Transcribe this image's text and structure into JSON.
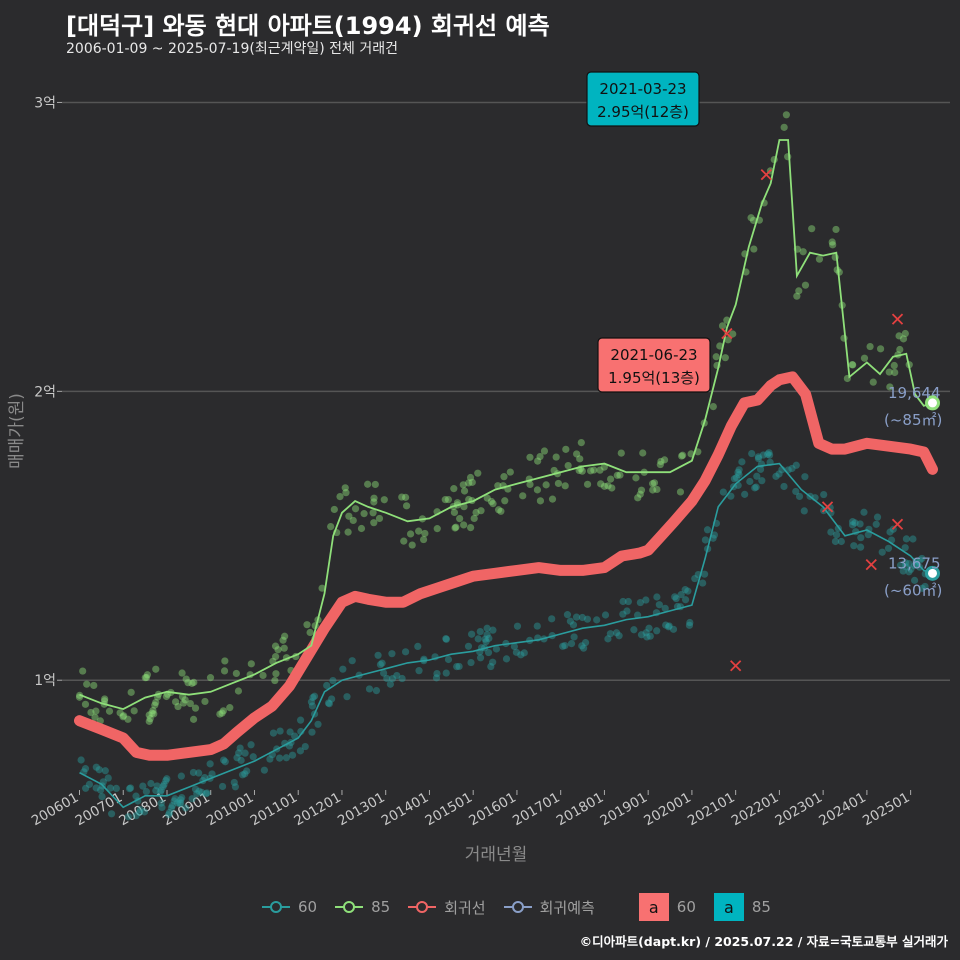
{
  "title": "[대덕구] 와동 현대 아파트(1994) 회귀선 예측",
  "subtitle": "2006-01-09 ~ 2025-07-19(최근계약일) 전체 거래건",
  "caption": "©디아파트(dapt.kr) / 2025.07.22 / 자료=국토교통부 실거래가",
  "colors": {
    "background": "#2b2b2d",
    "grid": "#555555",
    "series_60": "#2a9d9e",
    "series_85": "#8fe07a",
    "regression": "#f06565",
    "forecast": "#8a9fc8",
    "label_85_box": "#00b4c0",
    "label_reg_box": "#f87171"
  },
  "legend": {
    "items": [
      "60",
      "85",
      "회귀선",
      "회귀예측"
    ],
    "label_boxes": [
      {
        "text": "a",
        "label": "60"
      },
      {
        "text": "a",
        "label": "85"
      }
    ]
  },
  "chart_data": {
    "type": "scatter",
    "xlabel": "거래년월",
    "ylabel": "매매가(원)",
    "x_tick_labels": [
      "200601",
      "200701",
      "200801",
      "200901",
      "201001",
      "201101",
      "201201",
      "201301",
      "201401",
      "201501",
      "201601",
      "201701",
      "201801",
      "201901",
      "202001",
      "202101",
      "202201",
      "202301",
      "202401",
      "202501"
    ],
    "y_ticks": [
      1,
      2,
      3
    ],
    "y_tick_labels": [
      "1억",
      "2억",
      "3억"
    ],
    "ylim": [
      0.62,
      3.14
    ],
    "xlim": [
      2005.6,
      2025.9
    ],
    "grid": true,
    "legend_position": "bottom",
    "series": [
      {
        "name": "85",
        "type": "line",
        "points": [
          [
            2006.0,
            0.95
          ],
          [
            2006.5,
            0.92
          ],
          [
            2007.0,
            0.9
          ],
          [
            2007.5,
            0.94
          ],
          [
            2008.0,
            0.96
          ],
          [
            2008.5,
            0.95
          ],
          [
            2009.0,
            0.96
          ],
          [
            2009.5,
            0.99
          ],
          [
            2010.0,
            1.02
          ],
          [
            2010.5,
            1.06
          ],
          [
            2011.0,
            1.09
          ],
          [
            2011.3,
            1.12
          ],
          [
            2011.6,
            1.3
          ],
          [
            2011.8,
            1.5
          ],
          [
            2012.0,
            1.58
          ],
          [
            2012.3,
            1.62
          ],
          [
            2012.6,
            1.6
          ],
          [
            2013.0,
            1.58
          ],
          [
            2013.5,
            1.55
          ],
          [
            2014.0,
            1.56
          ],
          [
            2014.5,
            1.6
          ],
          [
            2015.0,
            1.62
          ],
          [
            2015.5,
            1.66
          ],
          [
            2016.0,
            1.68
          ],
          [
            2016.5,
            1.7
          ],
          [
            2017.0,
            1.72
          ],
          [
            2017.5,
            1.74
          ],
          [
            2018.0,
            1.75
          ],
          [
            2018.5,
            1.72
          ],
          [
            2019.0,
            1.72
          ],
          [
            2019.5,
            1.72
          ],
          [
            2020.0,
            1.76
          ],
          [
            2020.3,
            1.9
          ],
          [
            2020.6,
            2.08
          ],
          [
            2020.8,
            2.22
          ],
          [
            2021.0,
            2.3
          ],
          [
            2021.3,
            2.5
          ],
          [
            2021.6,
            2.65
          ],
          [
            2021.8,
            2.72
          ],
          [
            2022.0,
            2.87
          ],
          [
            2022.2,
            2.87
          ],
          [
            2022.4,
            2.4
          ],
          [
            2022.7,
            2.48
          ],
          [
            2023.0,
            2.47
          ],
          [
            2023.3,
            2.48
          ],
          [
            2023.6,
            2.05
          ],
          [
            2024.0,
            2.1
          ],
          [
            2024.3,
            2.06
          ],
          [
            2024.6,
            2.12
          ],
          [
            2024.9,
            2.13
          ],
          [
            2025.1,
            1.99
          ],
          [
            2025.3,
            1.95
          ],
          [
            2025.5,
            1.96
          ]
        ]
      },
      {
        "name": "60",
        "type": "line",
        "points": [
          [
            2006.0,
            0.68
          ],
          [
            2006.5,
            0.64
          ],
          [
            2007.0,
            0.56
          ],
          [
            2007.5,
            0.6
          ],
          [
            2008.0,
            0.6
          ],
          [
            2008.5,
            0.63
          ],
          [
            2009.0,
            0.66
          ],
          [
            2009.5,
            0.69
          ],
          [
            2010.0,
            0.72
          ],
          [
            2010.5,
            0.76
          ],
          [
            2011.0,
            0.8
          ],
          [
            2011.3,
            0.86
          ],
          [
            2011.6,
            0.96
          ],
          [
            2012.0,
            1.0
          ],
          [
            2012.5,
            1.02
          ],
          [
            2013.0,
            1.04
          ],
          [
            2013.5,
            1.06
          ],
          [
            2014.0,
            1.07
          ],
          [
            2014.5,
            1.09
          ],
          [
            2015.0,
            1.1
          ],
          [
            2015.5,
            1.12
          ],
          [
            2016.0,
            1.13
          ],
          [
            2016.5,
            1.14
          ],
          [
            2017.0,
            1.16
          ],
          [
            2017.5,
            1.18
          ],
          [
            2018.0,
            1.19
          ],
          [
            2018.5,
            1.21
          ],
          [
            2019.0,
            1.22
          ],
          [
            2019.5,
            1.24
          ],
          [
            2020.0,
            1.26
          ],
          [
            2020.3,
            1.42
          ],
          [
            2020.6,
            1.6
          ],
          [
            2021.0,
            1.68
          ],
          [
            2021.5,
            1.74
          ],
          [
            2022.0,
            1.75
          ],
          [
            2022.5,
            1.66
          ],
          [
            2023.0,
            1.6
          ],
          [
            2023.5,
            1.5
          ],
          [
            2024.0,
            1.52
          ],
          [
            2024.5,
            1.48
          ],
          [
            2025.0,
            1.43
          ],
          [
            2025.3,
            1.38
          ],
          [
            2025.5,
            1.37
          ]
        ]
      },
      {
        "name": "회귀선",
        "type": "line",
        "points": [
          [
            2006.0,
            0.86
          ],
          [
            2006.5,
            0.83
          ],
          [
            2007.0,
            0.8
          ],
          [
            2007.3,
            0.75
          ],
          [
            2007.6,
            0.74
          ],
          [
            2008.0,
            0.74
          ],
          [
            2008.5,
            0.75
          ],
          [
            2009.0,
            0.76
          ],
          [
            2009.3,
            0.78
          ],
          [
            2009.6,
            0.82
          ],
          [
            2010.0,
            0.87
          ],
          [
            2010.4,
            0.91
          ],
          [
            2010.8,
            0.98
          ],
          [
            2011.2,
            1.08
          ],
          [
            2011.6,
            1.18
          ],
          [
            2012.0,
            1.27
          ],
          [
            2012.3,
            1.29
          ],
          [
            2012.6,
            1.28
          ],
          [
            2013.0,
            1.27
          ],
          [
            2013.4,
            1.27
          ],
          [
            2013.8,
            1.3
          ],
          [
            2014.2,
            1.32
          ],
          [
            2014.6,
            1.34
          ],
          [
            2015.0,
            1.36
          ],
          [
            2015.5,
            1.37
          ],
          [
            2016.0,
            1.38
          ],
          [
            2016.5,
            1.39
          ],
          [
            2017.0,
            1.38
          ],
          [
            2017.5,
            1.38
          ],
          [
            2018.0,
            1.39
          ],
          [
            2018.4,
            1.43
          ],
          [
            2018.8,
            1.44
          ],
          [
            2019.0,
            1.45
          ],
          [
            2019.3,
            1.5
          ],
          [
            2019.6,
            1.55
          ],
          [
            2020.0,
            1.62
          ],
          [
            2020.3,
            1.69
          ],
          [
            2020.6,
            1.78
          ],
          [
            2020.9,
            1.88
          ],
          [
            2021.2,
            1.96
          ],
          [
            2021.5,
            1.97
          ],
          [
            2021.8,
            2.02
          ],
          [
            2022.0,
            2.04
          ],
          [
            2022.3,
            2.05
          ],
          [
            2022.6,
            1.99
          ],
          [
            2022.9,
            1.82
          ],
          [
            2023.2,
            1.8
          ],
          [
            2023.5,
            1.8
          ],
          [
            2024.0,
            1.82
          ],
          [
            2024.5,
            1.81
          ],
          [
            2025.0,
            1.8
          ],
          [
            2025.3,
            1.79
          ],
          [
            2025.5,
            1.73
          ]
        ]
      }
    ],
    "annotations": [
      {
        "date": "2021-03-23",
        "label": "2.95억(12층)",
        "series": "85"
      },
      {
        "date": "2021-06-23",
        "label": "1.95억(13층)",
        "series": "회귀선"
      }
    ],
    "end_labels": [
      {
        "value": "19,644",
        "area": "(~85㎡)",
        "series": "85",
        "y": 1.96
      },
      {
        "value": "13,675",
        "area": "(~60㎡)",
        "series": "60",
        "y": 1.37
      }
    ]
  }
}
